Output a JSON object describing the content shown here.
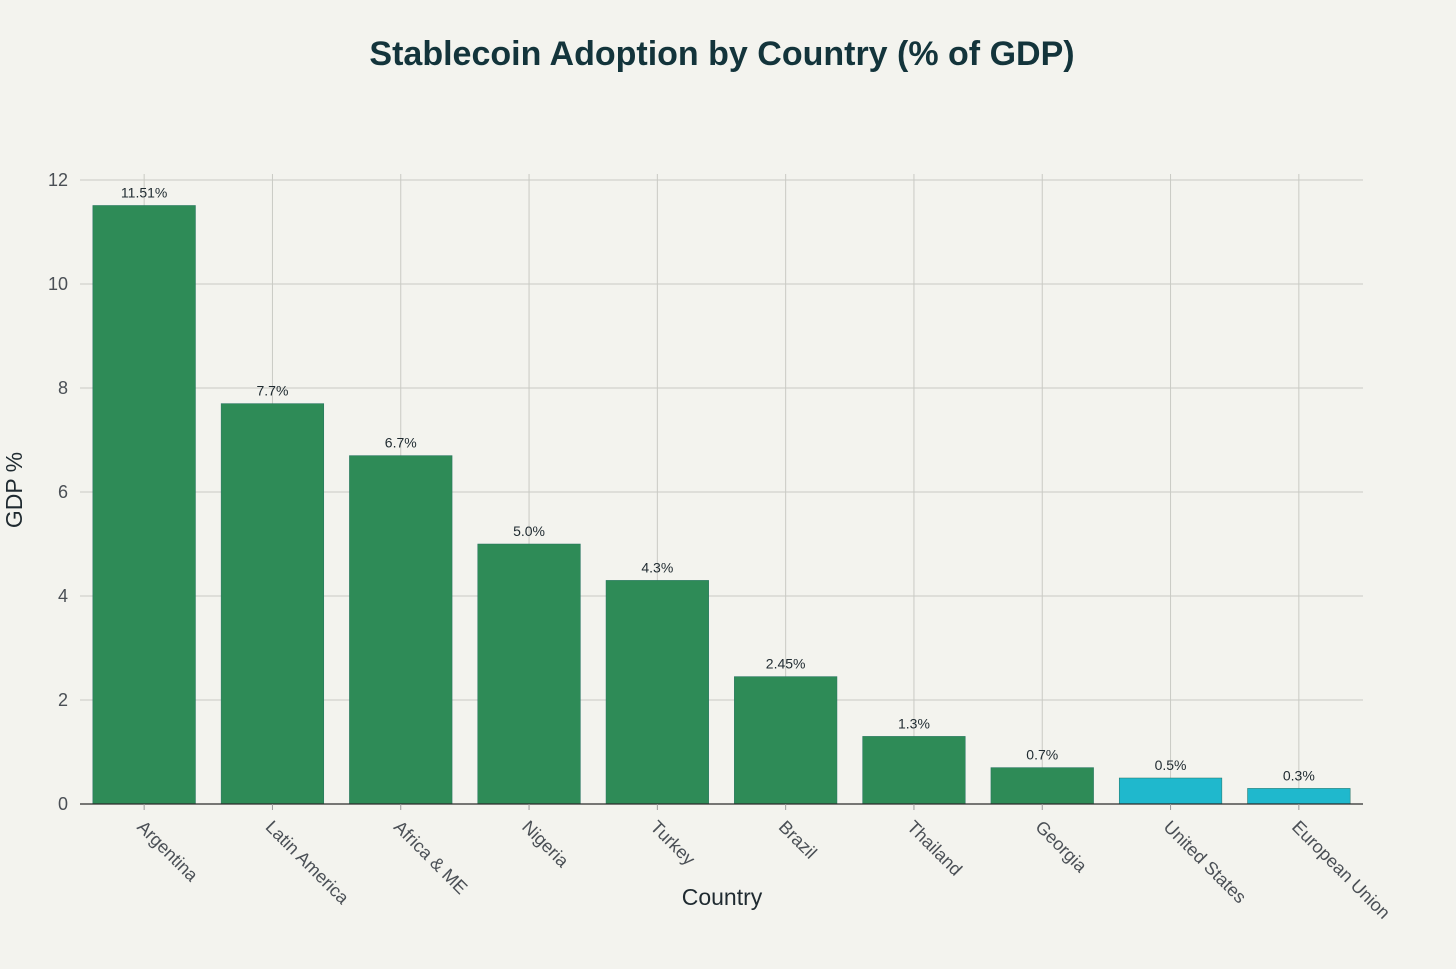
{
  "chart_data": {
    "type": "bar",
    "title": "Stablecoin Adoption by Country (% of GDP)",
    "xlabel": "Country",
    "ylabel": "GDP %",
    "ylim": [
      0,
      12
    ],
    "yticks": [
      0,
      2,
      4,
      6,
      8,
      10,
      12
    ],
    "grid": true,
    "categories": [
      "Argentina",
      "Latin America",
      "Africa & ME",
      "Nigeria",
      "Turkey",
      "Brazil",
      "Thailand",
      "Georgia",
      "United States",
      "European Union"
    ],
    "values": [
      11.51,
      7.7,
      6.7,
      5.0,
      4.3,
      2.45,
      1.3,
      0.7,
      0.5,
      0.3
    ],
    "data_labels": [
      "11.51%",
      "7.7%",
      "6.7%",
      "5.0%",
      "4.3%",
      "2.45%",
      "1.3%",
      "0.7%",
      "0.5%",
      "0.3%"
    ],
    "bar_colors": [
      "#2e8b57",
      "#2e8b57",
      "#2e8b57",
      "#2e8b57",
      "#2e8b57",
      "#2e8b57",
      "#2e8b57",
      "#2e8b57",
      "#1fb8cd",
      "#1fb8cd"
    ]
  }
}
